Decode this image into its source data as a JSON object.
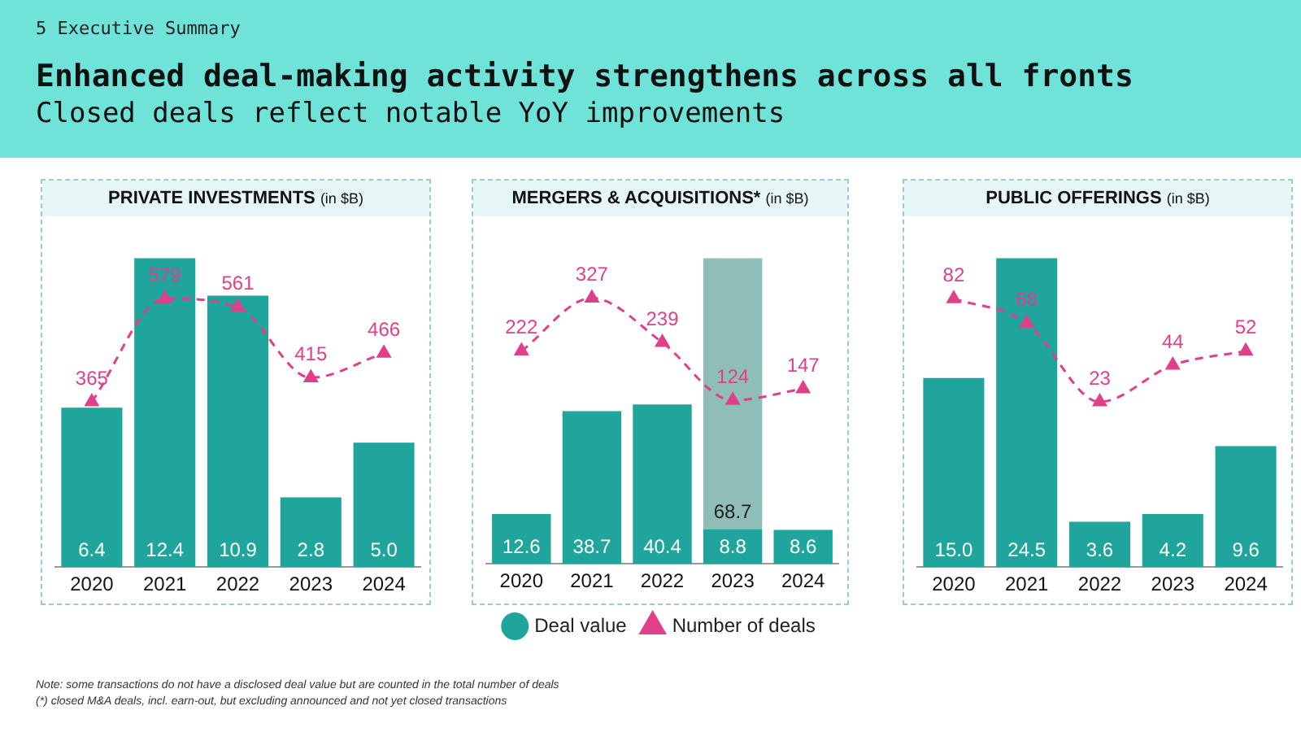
{
  "chart_data": [
    {
      "type": "bar",
      "title": "PRIVATE INVESTMENTS",
      "subtitle": "(in $B)",
      "categories": [
        "2020",
        "2021",
        "2022",
        "2023",
        "2024"
      ],
      "tick_labels": "x",
      "grid": false,
      "legend": false,
      "series": [
        {
          "type": "bar",
          "color": "#1fa59c",
          "values": [
            6.4,
            12.4,
            10.9,
            2.8,
            5.0
          ],
          "value_labels": [
            "6.4",
            "12.4",
            "10.9",
            "2.8",
            "5.0"
          ]
        },
        {
          "type": "line",
          "axis": "y2",
          "color": "#e0408a",
          "marker": "triangle",
          "line_style": "dashed",
          "values": [
            365,
            579,
            561,
            415,
            466
          ],
          "value_labels": [
            "365",
            "579",
            "561",
            "415",
            "466"
          ]
        }
      ]
    },
    {
      "type": "bar",
      "title": "MERGERS & ACQUISITIONS*",
      "subtitle": "(in $B)",
      "categories": [
        "2020",
        "2021",
        "2022",
        "2023",
        "2024"
      ],
      "tick_labels": "x",
      "grid": false,
      "legend": "bottom",
      "stacked": true,
      "series": [
        {
          "type": "bar",
          "name": "Deal value",
          "color": "#1fa59c",
          "values": [
            12.6,
            38.7,
            40.4,
            8.8,
            8.6
          ],
          "value_labels": [
            "12.6",
            "38.7",
            "40.4",
            "8.8",
            "8.6"
          ]
        },
        {
          "type": "bar",
          "color": "#8fbdb7",
          "values": [
            null,
            null,
            null,
            68.7,
            null
          ],
          "value_labels": [
            null,
            null,
            null,
            "68.7",
            null
          ]
        },
        {
          "type": "line",
          "name": "Number of deals",
          "axis": "y2",
          "color": "#e0408a",
          "marker": "triangle",
          "line_style": "dashed",
          "values": [
            222,
            327,
            239,
            124,
            147
          ],
          "value_labels": [
            "222",
            "327",
            "239",
            "124",
            "147"
          ]
        }
      ]
    },
    {
      "type": "bar",
      "title": "PUBLIC OFFERINGS",
      "subtitle": "(in $B)",
      "categories": [
        "2020",
        "2021",
        "2022",
        "2023",
        "2024"
      ],
      "tick_labels": "x",
      "grid": false,
      "legend": false,
      "series": [
        {
          "type": "bar",
          "color": "#1fa59c",
          "values": [
            15.0,
            24.5,
            3.6,
            4.2,
            9.6
          ],
          "value_labels": [
            "15.0",
            "24.5",
            "3.6",
            "4.2",
            "9.6"
          ]
        },
        {
          "type": "line",
          "axis": "y2",
          "color": "#e0408a",
          "marker": "triangle",
          "line_style": "dashed",
          "values": [
            82,
            68,
            23,
            44,
            52
          ],
          "value_labels": [
            "82",
            "68",
            "23",
            "44",
            "52"
          ]
        }
      ]
    },
    {
      "type": "other",
      "title": "Enhanced deal-making activity strengthens across all fronts",
      "subtitle": "Closed deals reflect notable YoY improvements",
      "annotations": [
        "5",
        "Executive Summary",
        "Note: some transactions do not have a disclosed deal value but are counted in the total number of deals",
        "(*) closed M&A deals, incl. earn-out, but excluding announced and not yet closed transactions"
      ]
    }
  ]
}
